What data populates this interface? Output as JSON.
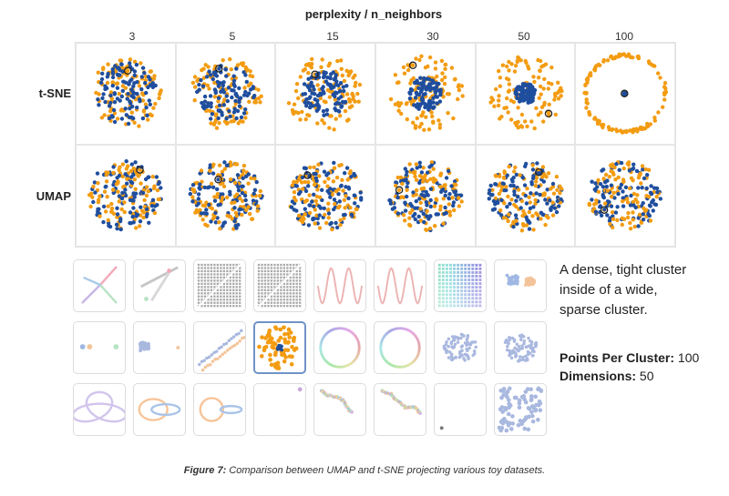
{
  "header": {
    "title": "perplexity / n_neighbors"
  },
  "params": [
    "3",
    "5",
    "15",
    "30",
    "50",
    "100"
  ],
  "rows": [
    {
      "label": "t-SNE"
    },
    {
      "label": "UMAP"
    }
  ],
  "colors": {
    "dense": "#1f4e9e",
    "sparse": "#f39c12",
    "selected_border": "#6f93c7"
  },
  "thumbnails": [
    {
      "name": "thumb-star-lines",
      "icon": "star-lines"
    },
    {
      "name": "thumb-linked-clusters",
      "icon": "linked-lines"
    },
    {
      "name": "thumb-grid-diagonal-a",
      "icon": "grid-diagonal"
    },
    {
      "name": "thumb-grid-diagonal-b",
      "icon": "grid-diagonal"
    },
    {
      "name": "thumb-sine-wave-a",
      "icon": "sine-wave"
    },
    {
      "name": "thumb-sine-wave-b",
      "icon": "sine-wave"
    },
    {
      "name": "thumb-gradient-grid",
      "icon": "gradient-grid"
    },
    {
      "name": "thumb-two-blobs",
      "icon": "two-blobs"
    },
    {
      "name": "thumb-three-clusters",
      "icon": "three-clusters"
    },
    {
      "name": "thumb-single-blob",
      "icon": "single-blob"
    },
    {
      "name": "thumb-parallel-lines",
      "icon": "parallel-lines"
    },
    {
      "name": "thumb-dense-in-sparse",
      "icon": "dense-in-sparse",
      "selected": true
    },
    {
      "name": "thumb-circle-a",
      "icon": "circle"
    },
    {
      "name": "thumb-circle-b",
      "icon": "circle"
    },
    {
      "name": "thumb-gaussian-a",
      "icon": "gaussian"
    },
    {
      "name": "thumb-gaussian-b",
      "icon": "gaussian"
    },
    {
      "name": "thumb-trefoil-knot",
      "icon": "trefoil"
    },
    {
      "name": "thumb-linked-rings",
      "icon": "linked-rings"
    },
    {
      "name": "thumb-unlinked-rings",
      "icon": "unlinked-rings"
    },
    {
      "name": "thumb-corner-point",
      "icon": "corner-point"
    },
    {
      "name": "thumb-random-walk-a",
      "icon": "random-walk"
    },
    {
      "name": "thumb-random-walk-b",
      "icon": "random-walk"
    },
    {
      "name": "thumb-sparse-point",
      "icon": "sparse-point"
    },
    {
      "name": "thumb-uniform-blobs",
      "icon": "uniform"
    }
  ],
  "description": {
    "text": "A dense, tight cluster inside of a wide, sparse cluster.",
    "points_label": "Points Per Cluster:",
    "points_value": "100",
    "dims_label": "Dimensions:",
    "dims_value": "50"
  },
  "caption": {
    "label": "Figure 7:",
    "text": "Comparison between UMAP and t-SNE projecting various toy datasets."
  }
}
